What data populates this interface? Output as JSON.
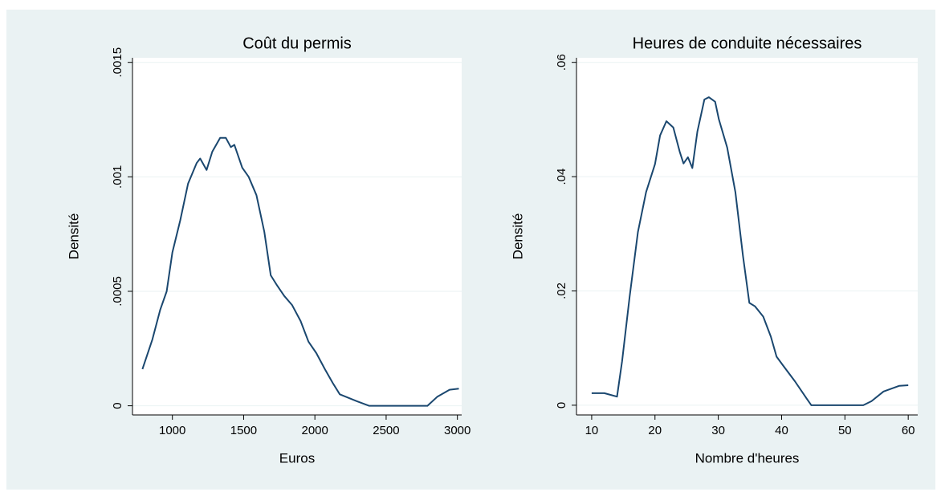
{
  "chart_data": [
    {
      "type": "line",
      "title": "Coût du permis",
      "xlabel": "Euros",
      "ylabel": "Densité",
      "color": "#1a476f",
      "grid": true,
      "x": [
        790,
        860,
        915,
        960,
        1000,
        1055,
        1110,
        1170,
        1195,
        1240,
        1280,
        1335,
        1375,
        1410,
        1435,
        1490,
        1535,
        1590,
        1645,
        1690,
        1730,
        1785,
        1840,
        1900,
        1955,
        2010,
        2070,
        2125,
        2175,
        2295,
        2380,
        2720,
        2790,
        2860,
        2945,
        3010
      ],
      "series": [
        {
          "name": "Densité",
          "color": "#1a476f",
          "values": [
            0.00016,
            0.00029,
            0.00042,
            0.0005,
            0.00067,
            0.00081,
            0.00097,
            0.00106,
            0.00108,
            0.00103,
            0.00111,
            0.00117,
            0.00117,
            0.00113,
            0.00114,
            0.00104,
            0.001,
            0.00092,
            0.00076,
            0.00057,
            0.00053,
            0.00048,
            0.00044,
            0.00037,
            0.00028,
            0.00023,
            0.00016,
            0.0001,
            5e-05,
            2e-05,
            0,
            0,
            0,
            4e-05,
            7e-05,
            7.5e-05
          ]
        }
      ],
      "xlim": [
        720,
        3030
      ],
      "xticks": [
        1000,
        1500,
        2000,
        2500,
        3000
      ],
      "ylim": [
        -4e-05,
        0.00152
      ],
      "yticks": [
        0,
        {
          "value": 0.0005,
          "label": ".0005"
        },
        {
          "value": 0.001,
          "label": ".001"
        },
        {
          "value": 0.0015,
          "label": ".0015"
        }
      ]
    },
    {
      "type": "line",
      "title": "Heures de conduite nécessaires",
      "xlabel": "Nombre d'heures",
      "ylabel": "Densité",
      "color": "#1a476f",
      "grid": true,
      "x": [
        10,
        12,
        14,
        14.8,
        16,
        17.3,
        18.6,
        20,
        20.8,
        21.8,
        22.9,
        23.9,
        24.5,
        25.2,
        25.9,
        26.7,
        27.8,
        28.5,
        29.5,
        30.1,
        31.4,
        32.7,
        33.9,
        34.9,
        35.8,
        37.1,
        38.3,
        39.2,
        40.2,
        42.1,
        44,
        44.7,
        52.9,
        54.2,
        56.1,
        58.6,
        60
      ],
      "series": [
        {
          "name": "Densité",
          "color": "#1a476f",
          "values": [
            0.0021,
            0.0021,
            0.0015,
            0.0077,
            0.019,
            0.0303,
            0.0373,
            0.0422,
            0.0472,
            0.0497,
            0.0486,
            0.0444,
            0.0423,
            0.0434,
            0.0415,
            0.0479,
            0.0535,
            0.0539,
            0.0531,
            0.05,
            0.0451,
            0.0373,
            0.0261,
            0.0179,
            0.0173,
            0.0155,
            0.012,
            0.0085,
            0.007,
            0.0042,
            0.0011,
            0,
            0,
            0.0007,
            0.0024,
            0.0034,
            0.0035
          ]
        }
      ],
      "xlim": [
        7.6,
        61.5
      ],
      "xticks": [
        10,
        20,
        30,
        40,
        50,
        60
      ],
      "ylim": [
        -0.0017,
        0.0608
      ],
      "yticks": [
        0,
        {
          "value": 0.02,
          "label": ".02"
        },
        {
          "value": 0.04,
          "label": ".04"
        },
        {
          "value": 0.06,
          "label": ".06"
        }
      ]
    }
  ]
}
